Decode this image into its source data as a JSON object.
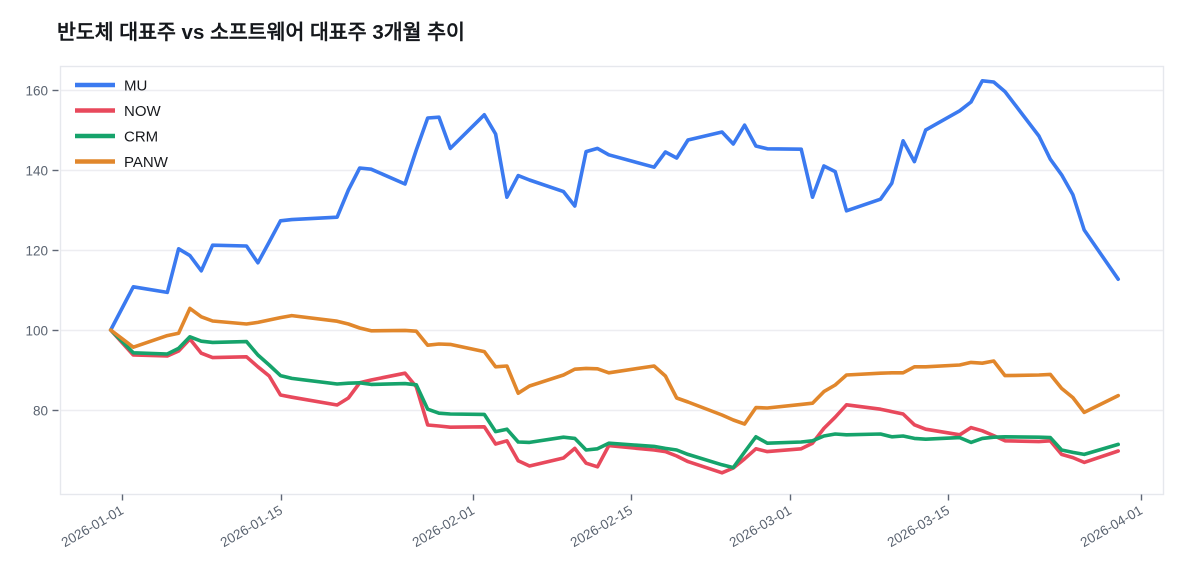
{
  "title": "반도체 대표주 vs 소프트웨어 대표주 3개월 추이",
  "chart_data": {
    "type": "line",
    "x_base_date": "2025-12-31",
    "x_dates": [
      "2025-12-31",
      "2026-01-02",
      "2026-01-05",
      "2026-01-06",
      "2026-01-07",
      "2026-01-08",
      "2026-01-09",
      "2026-01-12",
      "2026-01-13",
      "2026-01-14",
      "2026-01-15",
      "2026-01-16",
      "2026-01-20",
      "2026-01-21",
      "2026-01-22",
      "2026-01-23",
      "2026-01-26",
      "2026-01-27",
      "2026-01-28",
      "2026-01-29",
      "2026-01-30",
      "2026-02-02",
      "2026-02-03",
      "2026-02-04",
      "2026-02-05",
      "2026-02-06",
      "2026-02-09",
      "2026-02-10",
      "2026-02-11",
      "2026-02-12",
      "2026-02-13",
      "2026-02-17",
      "2026-02-18",
      "2026-02-19",
      "2026-02-20",
      "2026-02-23",
      "2026-02-24",
      "2026-02-25",
      "2026-02-26",
      "2026-02-27",
      "2026-03-02",
      "2026-03-03",
      "2026-03-04",
      "2026-03-05",
      "2026-03-06",
      "2026-03-09",
      "2026-03-10",
      "2026-03-11",
      "2026-03-12",
      "2026-03-13",
      "2026-03-16",
      "2026-03-17",
      "2026-03-18",
      "2026-03-19",
      "2026-03-20",
      "2026-03-23",
      "2026-03-24",
      "2026-03-25",
      "2026-03-26",
      "2026-03-27",
      "2026-03-30"
    ],
    "series": [
      {
        "name": "MU",
        "color": "#3b7af0",
        "values": [
          100,
          110.8,
          109.4,
          120.3,
          118.6,
          114.8,
          121.2,
          121,
          116.8,
          122,
          127.3,
          127.6,
          128.2,
          135,
          140.5,
          140.2,
          136.5,
          145,
          153,
          153.2,
          145.4,
          153.8,
          149,
          133.2,
          138.6,
          137.5,
          134.6,
          131,
          144.6,
          145.4,
          143.8,
          140.7,
          144.5,
          143,
          147.5,
          149.5,
          146.5,
          151.2,
          146,
          145.3,
          145.2,
          133.2,
          141,
          139.6,
          129.8,
          132.7,
          136.7,
          147.3,
          142.1,
          150,
          154.8,
          157,
          162.3,
          162,
          159.6,
          148.5,
          142.7,
          138.8,
          133.8,
          125,
          112.7
        ]
      },
      {
        "name": "NOW",
        "color": "#e8495c",
        "values": [
          100,
          93.75,
          93.5,
          94.75,
          97.75,
          94.2,
          93.1,
          93.3,
          90.8,
          88.5,
          83.75,
          83.2,
          81.25,
          83,
          86.8,
          87.5,
          89.2,
          85.8,
          76.25,
          76,
          75.7,
          75.8,
          71.5,
          72.3,
          67.3,
          66,
          68,
          70.4,
          66.7,
          65.8,
          71.1,
          70,
          69.6,
          68.5,
          67.1,
          64.3,
          65.5,
          67.8,
          70.3,
          69.6,
          70.3,
          71.7,
          75.4,
          78.2,
          81.3,
          80.2,
          79.6,
          79,
          76.3,
          75.2,
          73.8,
          75.6,
          74.8,
          73.6,
          72.3,
          72.1,
          72.3,
          68.9,
          68.1,
          66.9,
          69.75
        ]
      },
      {
        "name": "CRM",
        "color": "#16a36b",
        "values": [
          100,
          94.3,
          94,
          95.4,
          98.3,
          97.2,
          96.9,
          97.1,
          93.75,
          91.25,
          88.6,
          87.9,
          86.5,
          86.7,
          86.8,
          86.4,
          86.6,
          86.3,
          80.2,
          79.2,
          79,
          78.9,
          74.6,
          75.2,
          72,
          71.9,
          73.2,
          72.9,
          70,
          70.3,
          71.7,
          70.9,
          70.4,
          70,
          68.9,
          66.3,
          65.6,
          69.5,
          73.3,
          71.7,
          72,
          72.3,
          73.5,
          74,
          73.8,
          74,
          73.3,
          73.5,
          72.9,
          72.7,
          73.1,
          71.9,
          72.9,
          73.2,
          73.3,
          73.2,
          73.1,
          70,
          69.4,
          68.9,
          71.4
        ]
      },
      {
        "name": "PANW",
        "color": "#e1872c",
        "values": [
          100,
          95.7,
          98.6,
          99.2,
          105.4,
          103.3,
          102.25,
          101.5,
          101.9,
          102.5,
          103.1,
          103.6,
          102.2,
          101.5,
          100.5,
          99.8,
          99.9,
          99.7,
          96.2,
          96.5,
          96.4,
          94.6,
          90.8,
          91,
          84.2,
          86,
          88.75,
          90.2,
          90.4,
          90.3,
          89.3,
          91,
          88.5,
          83,
          82,
          78.75,
          77.5,
          76.5,
          80.6,
          80.5,
          81.4,
          81.7,
          84.6,
          86.25,
          88.75,
          89.2,
          89.3,
          89.3,
          90.8,
          90.8,
          91.25,
          91.9,
          91.7,
          92.25,
          88.6,
          88.75,
          88.9,
          85.4,
          83.1,
          79.4,
          83.6
        ]
      }
    ],
    "x_tick_labels": [
      "2026-01-01",
      "2026-01-15",
      "2026-02-01",
      "2026-02-15",
      "2026-03-01",
      "2026-03-15",
      "2026-04-01"
    ],
    "y_ticks": [
      80,
      100,
      120,
      140,
      160
    ],
    "ylim": [
      59,
      166
    ],
    "grid": true,
    "legend_position": "top-left"
  },
  "colors": {
    "background": "#ffffff",
    "grid_line": "#ededf1",
    "plot_border": "#e6e8ed",
    "tick_label": "#5a6370",
    "tick_mark": "#5f6775",
    "title_text": "#15181c",
    "legend_label": "#17191d"
  }
}
